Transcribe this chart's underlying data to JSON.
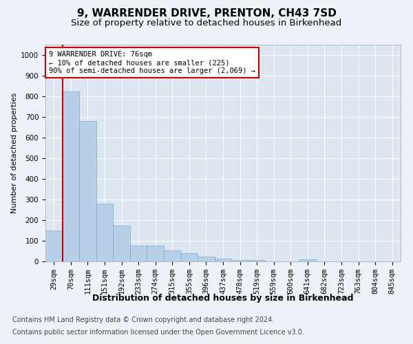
{
  "title1": "9, WARRENDER DRIVE, PRENTON, CH43 7SD",
  "title2": "Size of property relative to detached houses in Birkenhead",
  "xlabel": "Distribution of detached houses by size in Birkenhead",
  "ylabel": "Number of detached properties",
  "categories": [
    "29sqm",
    "70sqm",
    "111sqm",
    "151sqm",
    "192sqm",
    "233sqm",
    "274sqm",
    "315sqm",
    "355sqm",
    "396sqm",
    "437sqm",
    "478sqm",
    "519sqm",
    "559sqm",
    "600sqm",
    "641sqm",
    "682sqm",
    "723sqm",
    "763sqm",
    "804sqm",
    "845sqm"
  ],
  "values": [
    150,
    825,
    680,
    280,
    175,
    78,
    77,
    53,
    40,
    22,
    13,
    8,
    8,
    0,
    0,
    10,
    0,
    0,
    0,
    0,
    0
  ],
  "bar_color": "#b8cfe8",
  "bar_edge_color": "#7aaad0",
  "vline_x_idx": 1,
  "vline_color": "#cc0000",
  "annotation_text": "9 WARRENDER DRIVE: 76sqm\n← 10% of detached houses are smaller (225)\n90% of semi-detached houses are larger (2,069) →",
  "annotation_box_facecolor": "#ffffff",
  "annotation_box_edgecolor": "#cc0000",
  "ylim": [
    0,
    1050
  ],
  "yticks": [
    0,
    100,
    200,
    300,
    400,
    500,
    600,
    700,
    800,
    900,
    1000
  ],
  "footer1": "Contains HM Land Registry data © Crown copyright and database right 2024.",
  "footer2": "Contains public sector information licensed under the Open Government Licence v3.0.",
  "bg_color": "#eef2f8",
  "plot_bg_color": "#dde6f0",
  "grid_color": "#ffffff",
  "title1_fontsize": 11,
  "title2_fontsize": 9.5,
  "ylabel_fontsize": 8,
  "xlabel_fontsize": 9,
  "tick_fontsize": 7.5,
  "annotation_fontsize": 7.5,
  "footer_fontsize": 7
}
